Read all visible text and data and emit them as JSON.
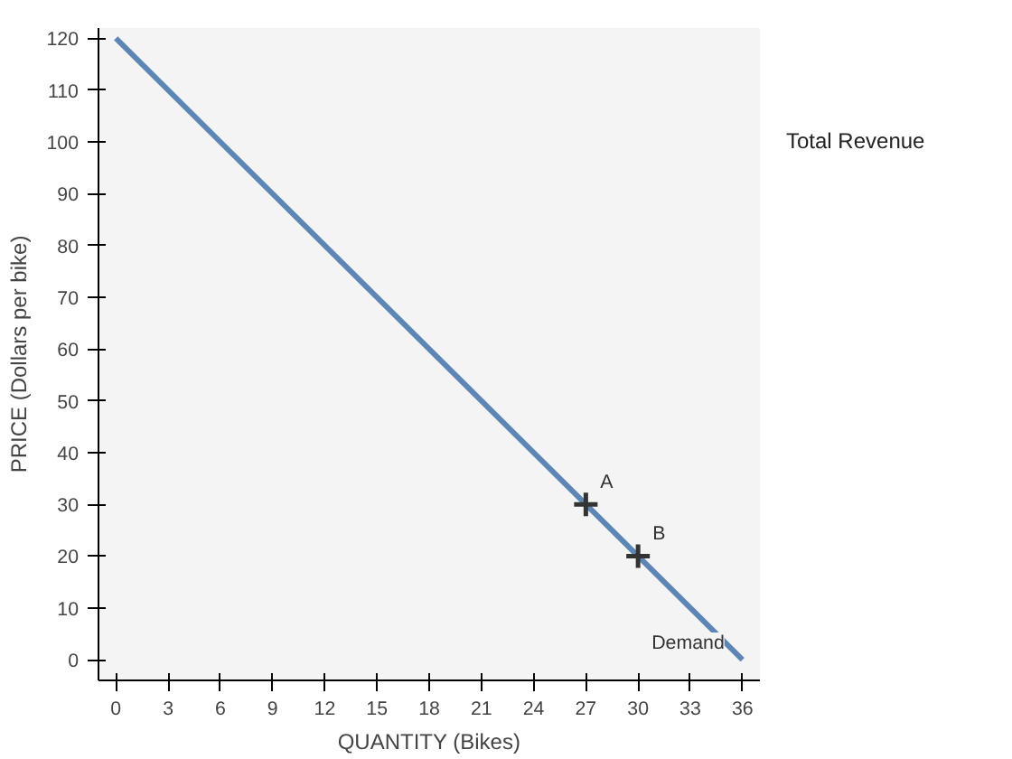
{
  "chart_data": {
    "type": "line",
    "xlabel": "QUANTITY (Bikes)",
    "ylabel": "PRICE (Dollars per bike)",
    "xlim": [
      -1,
      37
    ],
    "ylim": [
      -4,
      122
    ],
    "xticks": [
      0,
      3,
      6,
      9,
      12,
      15,
      18,
      21,
      24,
      27,
      30,
      33,
      36
    ],
    "yticks": [
      0,
      10,
      20,
      30,
      40,
      50,
      60,
      70,
      80,
      90,
      100,
      110,
      120
    ],
    "grid": false,
    "series": [
      {
        "name": "Demand",
        "color": "#5b86b5",
        "x": [
          0,
          36
        ],
        "values": [
          120,
          0
        ]
      },
      {
        "type": "scatter",
        "color": "#333333",
        "x": [
          27,
          30
        ],
        "values": [
          30,
          20
        ],
        "marker": "cross"
      }
    ],
    "annotations": [
      {
        "text": "A",
        "x": 27,
        "y": 30
      },
      {
        "text": "B",
        "x": 30,
        "y": 20
      },
      "Total Revenue"
    ]
  }
}
